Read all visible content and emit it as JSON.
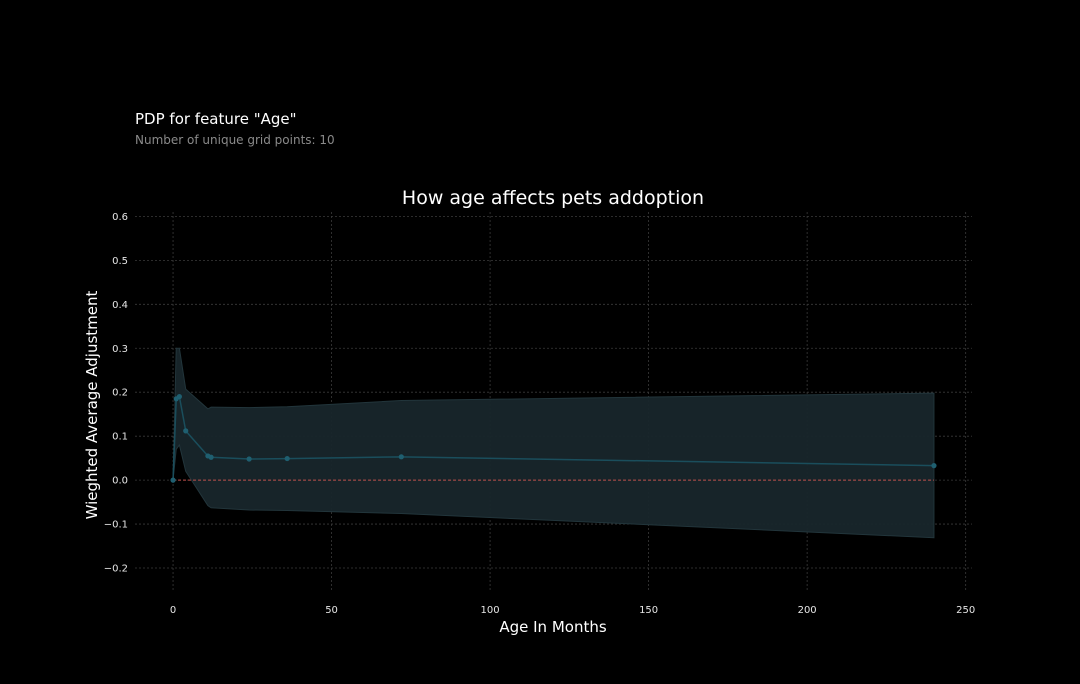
{
  "header": {
    "title": "PDP for feature \"Age\"",
    "subtitle": "Number of unique grid points: 10"
  },
  "chart_data": {
    "type": "line",
    "title": "How age affects pets addoption",
    "xlabel": "Age In Months",
    "ylabel": "Wieghted Average Adjustment",
    "xlim": [
      -12,
      252
    ],
    "ylim": [
      -0.25,
      0.61
    ],
    "xticks": [
      0,
      50,
      100,
      150,
      200,
      250
    ],
    "xtick_labels": [
      "0",
      "50",
      "100",
      "150",
      "200",
      "250"
    ],
    "yticks": [
      -0.2,
      -0.1,
      0.0,
      0.1,
      0.2,
      0.3,
      0.4,
      0.5,
      0.6
    ],
    "ytick_labels": [
      "−0.2",
      "−0.1",
      "0.0",
      "0.1",
      "0.2",
      "0.3",
      "0.4",
      "0.5",
      "0.6"
    ],
    "grid": true,
    "baseline": 0.0,
    "x": [
      0,
      1,
      2,
      4,
      11,
      12,
      24,
      36,
      72,
      240
    ],
    "series": [
      {
        "values": [
          0.0,
          0.185,
          0.19,
          0.112,
          0.055,
          0.052,
          0.048,
          0.049,
          0.053,
          0.033
        ],
        "upper": [
          0.0,
          0.3,
          0.3,
          0.207,
          0.162,
          0.166,
          0.165,
          0.167,
          0.181,
          0.198
        ],
        "lower": [
          0.0,
          0.07,
          0.08,
          0.02,
          -0.058,
          -0.063,
          -0.068,
          -0.069,
          -0.076,
          -0.131
        ]
      }
    ],
    "colors": {
      "line": "#1a4e5c",
      "marker": "#1f5f70",
      "band": "#18262b",
      "baseline": "#c0504d",
      "grid": "#3a3a3a",
      "text": "#ffffff",
      "tick": "#e6e6e6"
    }
  }
}
